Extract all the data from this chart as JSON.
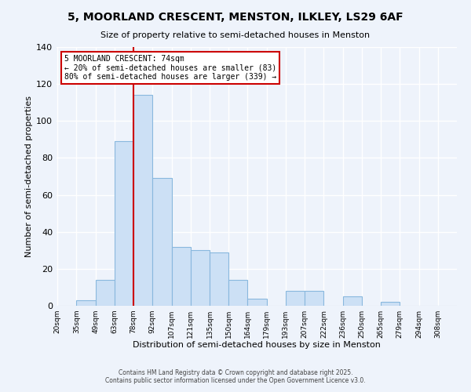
{
  "title": "5, MOORLAND CRESCENT, MENSTON, ILKLEY, LS29 6AF",
  "subtitle": "Size of property relative to semi-detached houses in Menston",
  "xlabel": "Distribution of semi-detached houses by size in Menston",
  "ylabel": "Number of semi-detached properties",
  "bin_labels": [
    "20sqm",
    "35sqm",
    "49sqm",
    "63sqm",
    "78sqm",
    "92sqm",
    "107sqm",
    "121sqm",
    "135sqm",
    "150sqm",
    "164sqm",
    "179sqm",
    "193sqm",
    "207sqm",
    "222sqm",
    "236sqm",
    "250sqm",
    "265sqm",
    "279sqm",
    "294sqm",
    "308sqm"
  ],
  "bar_values": [
    0,
    3,
    14,
    89,
    114,
    69,
    32,
    30,
    29,
    14,
    4,
    0,
    8,
    8,
    0,
    5,
    0,
    2,
    0,
    0,
    0
  ],
  "bar_color": "#cce0f5",
  "bar_edgecolor": "#89b8de",
  "annotation_title": "5 MOORLAND CRESCENT: 74sqm",
  "annotation_line1": "← 20% of semi-detached houses are smaller (83)",
  "annotation_line2": "80% of semi-detached houses are larger (339) →",
  "annotation_box_color": "#ffffff",
  "annotation_box_edgecolor": "#cc0000",
  "vline_color": "#cc0000",
  "ylim": [
    0,
    140
  ],
  "yticks": [
    0,
    20,
    40,
    60,
    80,
    100,
    120,
    140
  ],
  "footer_line1": "Contains HM Land Registry data © Crown copyright and database right 2025.",
  "footer_line2": "Contains public sector information licensed under the Open Government Licence v3.0.",
  "background_color": "#eef3fb",
  "grid_color": "#ffffff",
  "bin_width": 14
}
